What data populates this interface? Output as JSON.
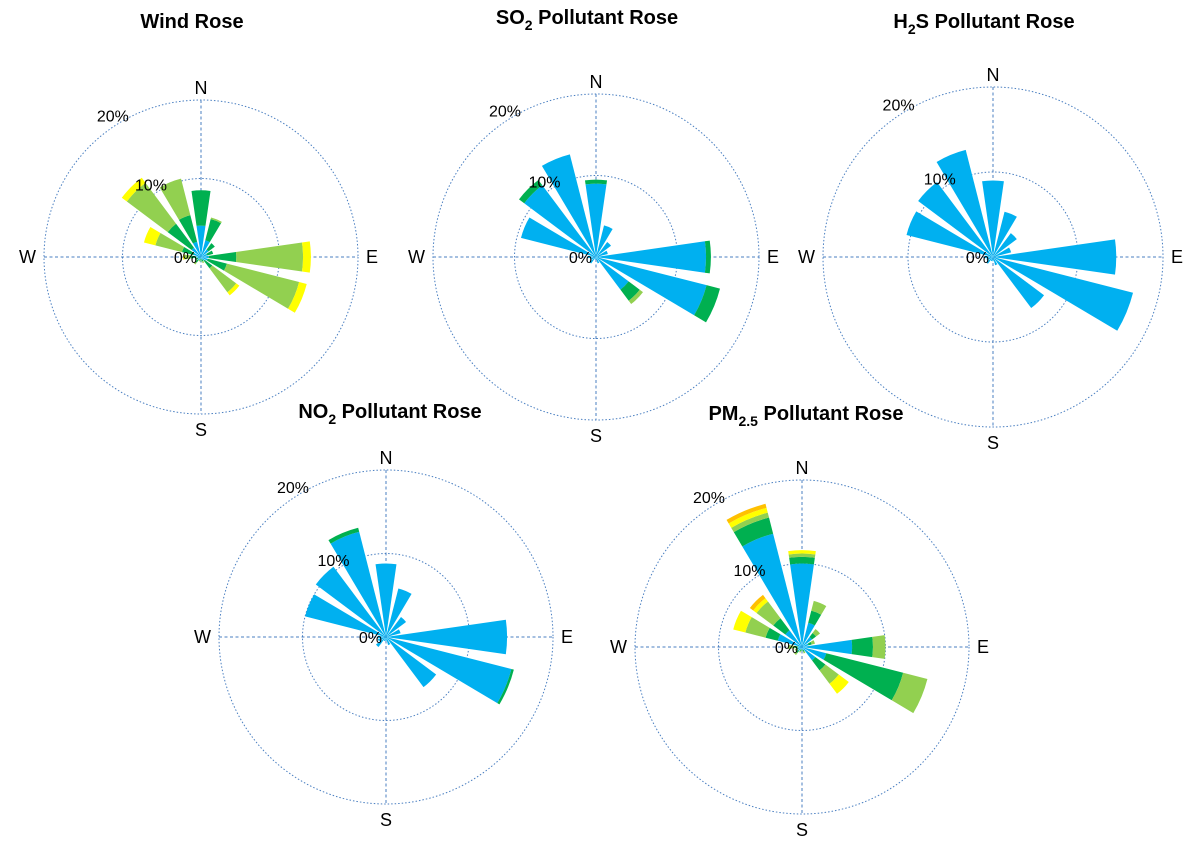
{
  "colors": {
    "class1": "#00b0f0",
    "class2": "#00b050",
    "class3": "#92d050",
    "class4": "#ffff00",
    "class5": "#ffc000",
    "grid": "#4a7fc1"
  },
  "compass": {
    "n": "N",
    "e": "E",
    "s": "S",
    "w": "W"
  },
  "chart_data": [
    {
      "type": "wind-rose",
      "title": "Wind Rose",
      "rings": [
        "0%",
        "10%",
        "20%"
      ],
      "rmax": 20,
      "directions": [
        0,
        22.5,
        45,
        67.5,
        90,
        112.5,
        135,
        157.5,
        180,
        202.5,
        225,
        247.5,
        270,
        292.5,
        315,
        337.5
      ],
      "series": [
        {
          "color_key": "class1",
          "values": [
            4.0,
            2.2,
            1.2,
            0.8,
            1.0,
            0.9,
            0.6,
            0.3,
            0.3,
            0.2,
            0.5,
            0.4,
            0.6,
            1.0,
            1.5,
            2.0
          ]
        },
        {
          "color_key": "class2",
          "values": [
            4.5,
            2.8,
            1.0,
            0.8,
            3.5,
            2.5,
            1.2,
            0.3,
            0.3,
            0.2,
            0.4,
            0.4,
            0.7,
            1.5,
            3.8,
            3.5
          ]
        },
        {
          "color_key": "class3",
          "values": [
            0,
            0.2,
            0,
            0,
            8.5,
            9.5,
            3.8,
            0.2,
            0,
            0.2,
            0.3,
            0,
            0.8,
            3.5,
            6.5,
            4.8
          ]
        },
        {
          "color_key": "class4",
          "values": [
            0,
            0,
            0,
            0,
            1.0,
            1.0,
            0.5,
            0,
            0,
            0,
            0,
            0,
            0.2,
            1.5,
            0.8,
            0
          ]
        }
      ]
    },
    {
      "type": "wind-rose",
      "title": "SO",
      "title_sub": "2",
      "title_rest": " Pollutant Rose",
      "rings": [
        "0%",
        "10%",
        "20%"
      ],
      "rmax": 20,
      "directions": [
        0,
        22.5,
        45,
        67.5,
        90,
        112.5,
        135,
        157.5,
        180,
        202.5,
        225,
        247.5,
        270,
        292.5,
        315,
        337.5
      ],
      "series": [
        {
          "color_key": "class1",
          "values": [
            9.0,
            4.0,
            2.3,
            1.5,
            13.5,
            14.0,
            5.0,
            0.8,
            0.3,
            0.3,
            1.0,
            0.7,
            1.0,
            9.5,
            11.0,
            13.0
          ]
        },
        {
          "color_key": "class2",
          "values": [
            0.5,
            0,
            0,
            0,
            0.6,
            1.7,
            1.7,
            0,
            0,
            0,
            0,
            0,
            0,
            0,
            0.8,
            0
          ]
        },
        {
          "color_key": "class3",
          "values": [
            0,
            0,
            0,
            0,
            0,
            0,
            0.5,
            0,
            0,
            0,
            0,
            0,
            0,
            0,
            0,
            0
          ]
        }
      ]
    },
    {
      "type": "wind-rose",
      "title": "H",
      "title_sub": "2",
      "title_rest": "S Pollutant Rose",
      "rings": [
        "0%",
        "10%",
        "20%"
      ],
      "rmax": 20,
      "directions": [
        0,
        22.5,
        45,
        67.5,
        90,
        112.5,
        135,
        157.5,
        180,
        202.5,
        225,
        247.5,
        270,
        292.5,
        315,
        337.5
      ],
      "series": [
        {
          "color_key": "class1",
          "values": [
            9.0,
            5.5,
            3.5,
            2.2,
            14.5,
            17.0,
            7.5,
            1.0,
            0.5,
            0.5,
            1.0,
            0.8,
            1.0,
            10.5,
            11.0,
            13.0
          ]
        }
      ]
    },
    {
      "type": "wind-rose",
      "title": "NO",
      "title_sub": "2",
      "title_rest": " Pollutant Rose",
      "rings": [
        "0%",
        "10%",
        "20%"
      ],
      "rmax": 20,
      "directions": [
        0,
        22.5,
        45,
        67.5,
        90,
        112.5,
        135,
        157.5,
        180,
        202.5,
        225,
        247.5,
        270,
        292.5,
        315,
        337.5
      ],
      "series": [
        {
          "color_key": "class1",
          "values": [
            8.8,
            6.0,
            3.0,
            1.8,
            14.5,
            15.5,
            7.5,
            1.0,
            0.5,
            0.5,
            1.5,
            1.0,
            1.0,
            10.0,
            10.5,
            13.0
          ]
        },
        {
          "color_key": "class2",
          "values": [
            0,
            0,
            0,
            0,
            0,
            0.3,
            0,
            0,
            0,
            0,
            0,
            0,
            0,
            0,
            0,
            0.5
          ]
        }
      ]
    },
    {
      "type": "wind-rose",
      "title": "PM",
      "title_sub": "2.5",
      "title_rest": " Pollutant Rose",
      "rings": [
        "0%",
        "10%",
        "20%"
      ],
      "rmax": 20,
      "directions": [
        0,
        22.5,
        45,
        67.5,
        90,
        112.5,
        135,
        157.5,
        180,
        202.5,
        225,
        247.5,
        270,
        292.5,
        315,
        337.5
      ],
      "series": [
        {
          "color_key": "class1",
          "values": [
            10.0,
            3.0,
            1.5,
            0.8,
            6.0,
            3.0,
            2.0,
            0.4,
            0.3,
            0.3,
            0.6,
            0.5,
            0.5,
            3.0,
            2.5,
            14.0
          ]
        },
        {
          "color_key": "class2",
          "values": [
            0.8,
            1.5,
            0.6,
            0.4,
            2.5,
            9.5,
            1.5,
            0.2,
            0.2,
            0.2,
            0.3,
            0.2,
            0.4,
            1.5,
            1.8,
            2.0
          ]
        },
        {
          "color_key": "class3",
          "values": [
            0.4,
            1.2,
            0.6,
            0.4,
            1.5,
            3.0,
            2.0,
            0.2,
            0,
            0.2,
            0.3,
            0.2,
            0.8,
            2.5,
            2.5,
            0.6
          ]
        },
        {
          "color_key": "class4",
          "values": [
            0.4,
            0,
            0,
            0,
            0,
            0,
            1.5,
            0,
            0,
            0,
            0,
            0,
            0,
            1.5,
            0.5,
            0.6
          ]
        },
        {
          "color_key": "class5",
          "values": [
            0,
            0,
            0,
            0,
            0,
            0,
            0,
            0,
            0,
            0,
            0,
            0,
            0,
            0,
            0.5,
            0.5
          ]
        }
      ]
    }
  ]
}
